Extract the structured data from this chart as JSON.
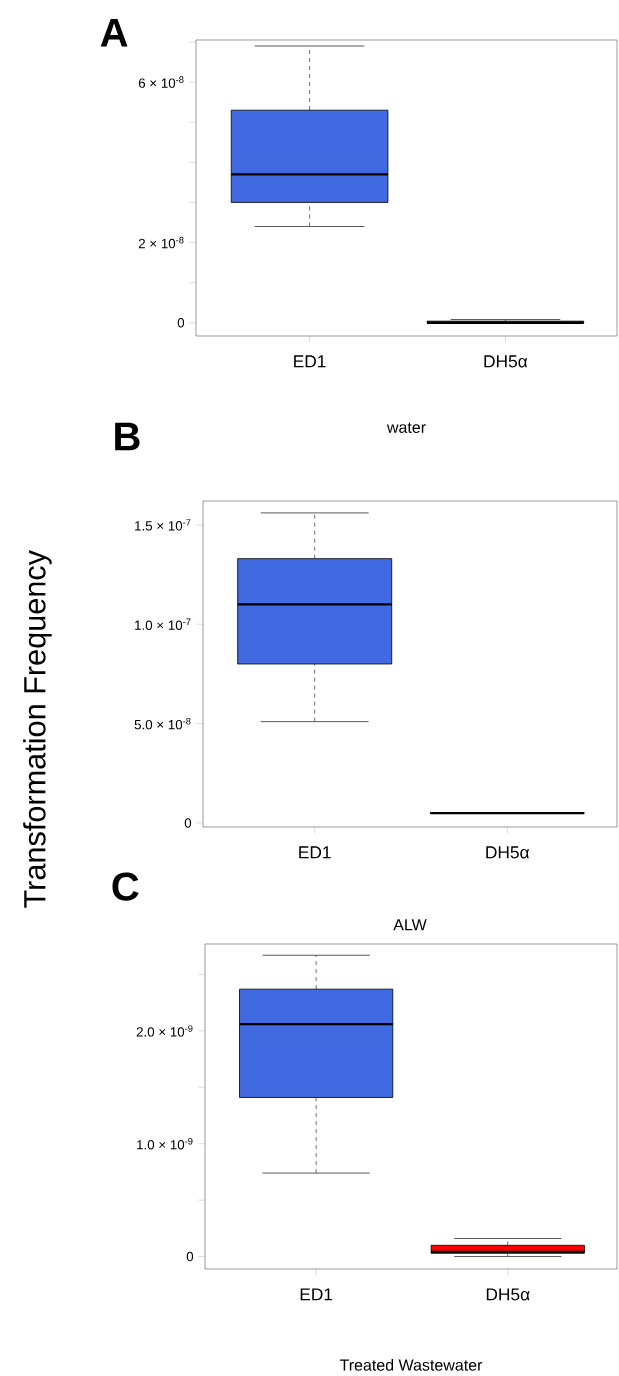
{
  "chart_data": [
    {
      "type": "box",
      "title": "A",
      "xlabel": "water",
      "categories": [
        "ED1",
        "DH5α"
      ],
      "colors": [
        "#4169e1",
        "#8b0000"
      ],
      "boxes": [
        {
          "low": 2.4e-08,
          "q1": 3e-08,
          "median": 3.7e-08,
          "q3": 5.3e-08,
          "high": 6.9e-08
        },
        {
          "low": 0,
          "q1": 0,
          "median": 0,
          "q3": 4e-10,
          "high": 8e-10
        }
      ],
      "ylim": [
        -3.3e-09,
        7.05e-08
      ],
      "yticks": [
        {
          "value": 0,
          "label": "0"
        },
        {
          "value": 1e-08,
          "label": null
        },
        {
          "value": 2e-08,
          "label": "2 × 10$^{-8}$"
        },
        {
          "value": 3e-08,
          "label": null
        },
        {
          "value": 4e-08,
          "label": null
        },
        {
          "value": 5e-08,
          "label": null
        },
        {
          "value": 6e-08,
          "label": "6 × 10$^{-8}$"
        },
        {
          "value": 7e-08,
          "label": null
        }
      ]
    },
    {
      "type": "box",
      "title": "B",
      "xlabel": "ALW",
      "ylabel": "Transformation Frequency",
      "categories": [
        "ED1",
        "DH5α"
      ],
      "colors": [
        "#4169e1",
        "#000000"
      ],
      "boxes": [
        {
          "low": 5.1e-08,
          "q1": 8e-08,
          "median": 1.1e-07,
          "q3": 1.33e-07,
          "high": 1.56e-07
        },
        {
          "low": 5e-09,
          "q1": 5e-09,
          "median": 5e-09,
          "q3": 5e-09,
          "high": 5e-09
        }
      ],
      "ylim": [
        -2e-09,
        1.62e-07
      ],
      "yticks": [
        {
          "value": 0,
          "label": "0"
        },
        {
          "value": 5e-08,
          "label": "5.0 × 10$^{-8}$"
        },
        {
          "value": 1e-07,
          "label": "1.0 × 10$^{-7}$"
        },
        {
          "value": 1.5e-07,
          "label": "1.5 × 10$^{-7}$"
        }
      ]
    },
    {
      "type": "box",
      "title": "C",
      "xlabel": "Treated Wastewater",
      "categories": [
        "ED1",
        "DH5α"
      ],
      "colors": [
        "#4169e1",
        "#ff0000"
      ],
      "boxes": [
        {
          "low": 7.4e-10,
          "q1": 1.41e-09,
          "median": 2.06e-09,
          "q3": 2.37e-09,
          "high": 2.67e-09
        },
        {
          "low": 0,
          "q1": 3e-11,
          "median": 4e-11,
          "q3": 1e-10,
          "high": 1.6e-10
        }
      ],
      "ylim": [
        -1.1e-10,
        2.77e-09
      ],
      "yticks": [
        {
          "value": 0,
          "label": "0"
        },
        {
          "value": 5e-10,
          "label": null
        },
        {
          "value": 1e-09,
          "label": "1.0 × 10$^{-9}$"
        },
        {
          "value": 1.5e-09,
          "label": null
        },
        {
          "value": 2e-09,
          "label": "2.0 × 10$^{-9}$"
        },
        {
          "value": 2.5e-09,
          "label": null
        }
      ]
    }
  ]
}
